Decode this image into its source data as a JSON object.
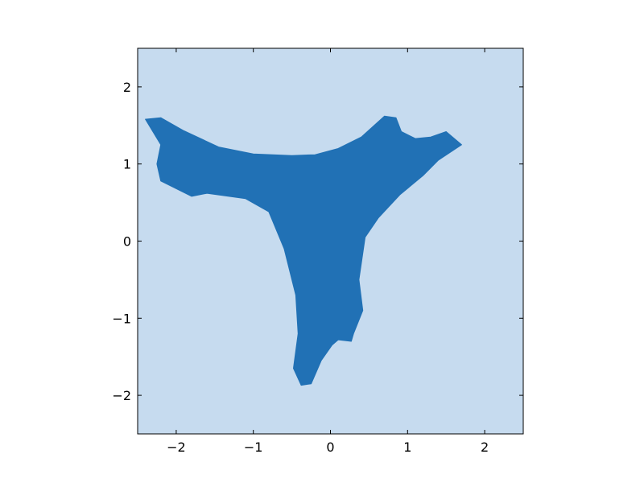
{
  "chart_data": {
    "type": "area",
    "title": "",
    "xlabel": "",
    "ylabel": "",
    "xlim": [
      -2.5,
      2.5
    ],
    "ylim": [
      -2.5,
      2.5
    ],
    "xticks": [
      -2,
      -1,
      0,
      1,
      2
    ],
    "yticks": [
      -2,
      -1,
      0,
      1,
      2
    ],
    "xtick_labels": [
      "−2",
      "−1",
      "0",
      "1",
      "2"
    ],
    "ytick_labels": [
      "−2",
      "−1",
      "0",
      "1",
      "2"
    ],
    "grid": false,
    "legend": "none",
    "background_color": "#c6dbef",
    "region_color": "#2171b5",
    "frame_color": "#000000",
    "region_outline": [
      [
        -2.4,
        1.58
      ],
      [
        -2.2,
        1.6
      ],
      [
        -1.9,
        1.43
      ],
      [
        -1.45,
        1.22
      ],
      [
        -1.0,
        1.13
      ],
      [
        -0.5,
        1.11
      ],
      [
        -0.2,
        1.12
      ],
      [
        0.1,
        1.2
      ],
      [
        0.4,
        1.35
      ],
      [
        0.7,
        1.62
      ],
      [
        0.85,
        1.6
      ],
      [
        0.92,
        1.42
      ],
      [
        1.1,
        1.33
      ],
      [
        1.3,
        1.35
      ],
      [
        1.5,
        1.42
      ],
      [
        1.7,
        1.25
      ],
      [
        1.4,
        1.05
      ],
      [
        1.2,
        0.85
      ],
      [
        0.9,
        0.6
      ],
      [
        0.62,
        0.3
      ],
      [
        0.45,
        0.05
      ],
      [
        0.37,
        -0.5
      ],
      [
        0.42,
        -0.9
      ],
      [
        0.3,
        -1.2
      ],
      [
        0.27,
        -1.3
      ],
      [
        0.1,
        -1.28
      ],
      [
        0.02,
        -1.35
      ],
      [
        -0.12,
        -1.55
      ],
      [
        -0.25,
        -1.85
      ],
      [
        -0.38,
        -1.87
      ],
      [
        -0.48,
        -1.65
      ],
      [
        -0.42,
        -1.2
      ],
      [
        -0.45,
        -0.7
      ],
      [
        -0.6,
        -0.1
      ],
      [
        -0.8,
        0.38
      ],
      [
        -1.1,
        0.55
      ],
      [
        -1.6,
        0.62
      ],
      [
        -1.8,
        0.58
      ],
      [
        -2.2,
        0.78
      ],
      [
        -2.25,
        1.0
      ],
      [
        -2.2,
        1.25
      ],
      [
        -2.4,
        1.58
      ]
    ]
  }
}
